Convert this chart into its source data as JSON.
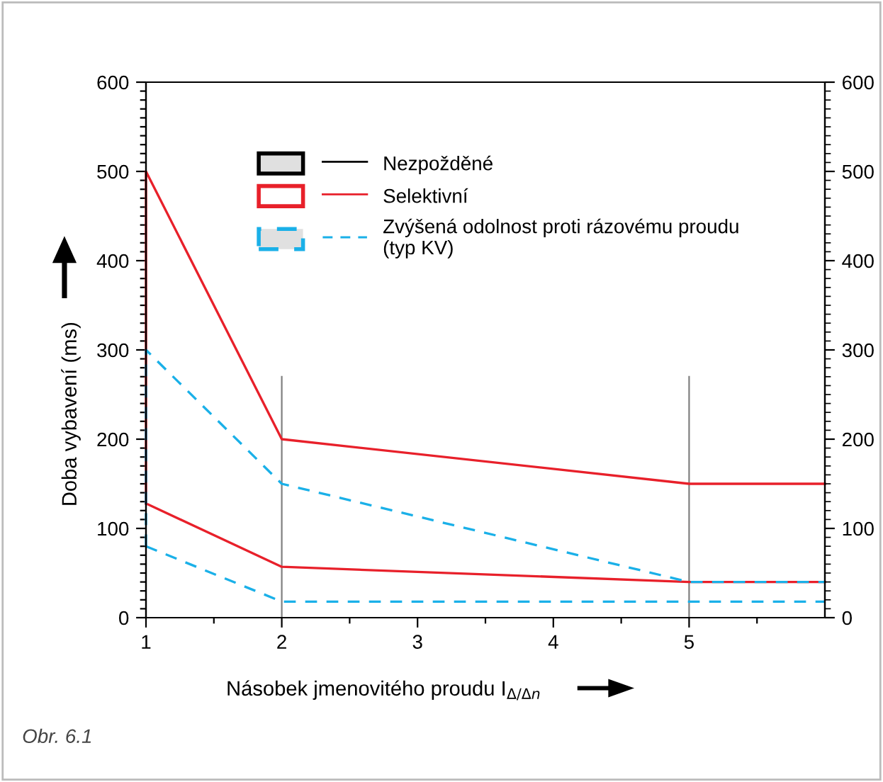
{
  "chart_data": {
    "type": "line",
    "xlabel": "Násobek jmenovitého proudu I$_{Δ/Δn}$",
    "ylabel": "Doba vybavení (ms)",
    "annotations": [
      "Obr. 6.1"
    ],
    "xlim": [
      1,
      6
    ],
    "xticks": [
      1,
      {
        "value": 1.5,
        "label": null
      },
      2,
      {
        "value": 2.5,
        "label": null
      },
      3,
      {
        "value": 3.5,
        "label": null
      },
      4,
      {
        "value": 4.5,
        "label": null
      },
      5,
      {
        "value": 5.5,
        "label": null
      }
    ],
    "ylim": [
      0,
      600
    ],
    "y2lim": [
      0,
      600
    ],
    "yticks": [
      0,
      {
        "value": 10,
        "label": null
      },
      {
        "value": 20,
        "label": null
      },
      {
        "value": 30,
        "label": null
      },
      {
        "value": 40,
        "label": null
      },
      {
        "value": 50,
        "label": null
      },
      {
        "value": 60,
        "label": null
      },
      {
        "value": 70,
        "label": null
      },
      {
        "value": 80,
        "label": null
      },
      {
        "value": 90,
        "label": null
      },
      100,
      {
        "value": 110,
        "label": null
      },
      {
        "value": 120,
        "label": null
      },
      {
        "value": 130,
        "label": null
      },
      {
        "value": 140,
        "label": null
      },
      {
        "value": 150,
        "label": null
      },
      {
        "value": 160,
        "label": null
      },
      {
        "value": 170,
        "label": null
      },
      {
        "value": 180,
        "label": null
      },
      {
        "value": 190,
        "label": null
      },
      200,
      {
        "value": 210,
        "label": null
      },
      {
        "value": 220,
        "label": null
      },
      {
        "value": 230,
        "label": null
      },
      {
        "value": 240,
        "label": null
      },
      {
        "value": 250,
        "label": null
      },
      {
        "value": 260,
        "label": null
      },
      {
        "value": 270,
        "label": null
      },
      {
        "value": 280,
        "label": null
      },
      {
        "value": 290,
        "label": null
      },
      300,
      {
        "value": 310,
        "label": null
      },
      {
        "value": 320,
        "label": null
      },
      {
        "value": 330,
        "label": null
      },
      {
        "value": 340,
        "label": null
      },
      {
        "value": 350,
        "label": null
      },
      {
        "value": 360,
        "label": null
      },
      {
        "value": 370,
        "label": null
      },
      {
        "value": 380,
        "label": null
      },
      {
        "value": 390,
        "label": null
      },
      400,
      {
        "value": 410,
        "label": null
      },
      {
        "value": 420,
        "label": null
      },
      {
        "value": 430,
        "label": null
      },
      {
        "value": 440,
        "label": null
      },
      {
        "value": 450,
        "label": null
      },
      {
        "value": 460,
        "label": null
      },
      {
        "value": 470,
        "label": null
      },
      {
        "value": 480,
        "label": null
      },
      {
        "value": 490,
        "label": null
      },
      500,
      {
        "value": 510,
        "label": null
      },
      {
        "value": 520,
        "label": null
      },
      {
        "value": 530,
        "label": null
      },
      {
        "value": 540,
        "label": null
      },
      {
        "value": 550,
        "label": null
      },
      {
        "value": 560,
        "label": null
      },
      {
        "value": 570,
        "label": null
      },
      {
        "value": 580,
        "label": null
      },
      {
        "value": 590,
        "label": null
      },
      600
    ],
    "y2ticks": [
      0,
      100,
      200,
      300,
      400,
      500,
      600
    ],
    "legend": "top",
    "grid": false,
    "marker": "none",
    "ref_lines": [
      {
        "axis": "x",
        "value": 2,
        "color": "#808080"
      },
      {
        "axis": "x",
        "value": 5,
        "color": "#808080"
      }
    ],
    "series": [
      {
        "name": "Nezpožděné",
        "color": "#000000",
        "line_style": "solid"
      },
      {
        "name": "Selektivní",
        "color": "#e8202a",
        "line_style": "solid",
        "x": [
          1,
          1,
          2,
          5,
          6
        ],
        "values": [
          128,
          500,
          200,
          150,
          150
        ]
      },
      {
        "color": "#e8202a",
        "line_style": "solid",
        "x": [
          1,
          2,
          5,
          6
        ],
        "values": [
          128,
          57,
          40,
          40
        ]
      },
      {
        "name": "Zvýšená odolnost proti rázovému proudu\n(typ KV)",
        "color": "#1ab0e8",
        "line_style": "dashed",
        "x": [
          1,
          1,
          2,
          5,
          6
        ],
        "values": [
          80,
          300,
          150,
          40,
          40
        ]
      },
      {
        "color": "#1ab0e8",
        "line_style": "dashed",
        "x": [
          1,
          2,
          5,
          6
        ],
        "values": [
          80,
          18,
          18,
          18
        ]
      }
    ]
  }
}
